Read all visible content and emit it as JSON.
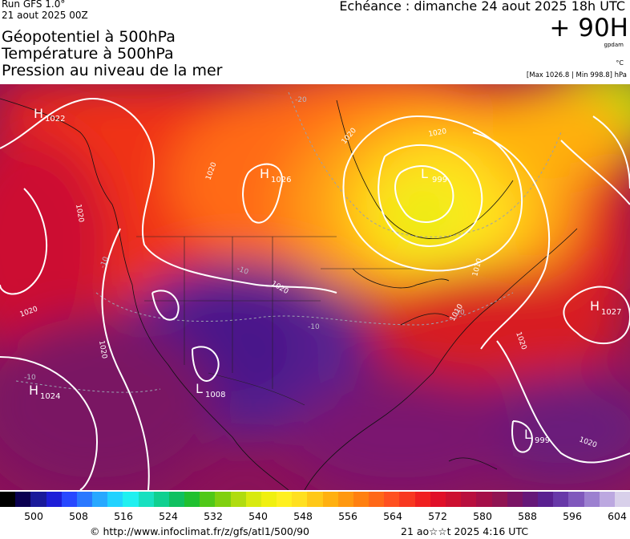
{
  "header": {
    "run": "Run GFS 1.0°",
    "run_date": "21 aout 2025 00Z",
    "titles": [
      "Géopotentiel à 500hPa",
      "Température à 500hPa",
      "Pression au niveau de la mer"
    ],
    "echeance": "Echéance : dimanche 24 aout 2025 18h UTC",
    "hour": "+ 90H",
    "unit_geo": "gpdam",
    "unit_temp": "°C",
    "maxmin": "[Max 1026.8 | Min 998.8] hPa"
  },
  "pressure_centers": [
    {
      "type": "H",
      "value": "1022"
    },
    {
      "type": "H",
      "value": "1026"
    },
    {
      "type": "L",
      "value": "999"
    },
    {
      "type": "H",
      "value": "1027"
    },
    {
      "type": "H",
      "value": "1024"
    },
    {
      "type": "L",
      "value": "1008"
    },
    {
      "type": "L",
      "value": "999"
    }
  ],
  "isobar_labels": [
    "1020",
    "1020",
    "1020",
    "1020",
    "1020",
    "1020",
    "1020",
    "1020",
    "1010",
    "1010",
    "1020"
  ],
  "temp_labels": [
    "-20",
    "-10",
    "-10",
    "-10",
    "-10",
    "-10"
  ],
  "colorbar": {
    "colors": [
      "#000000",
      "#0a0050",
      "#1a1a9a",
      "#1e1ed8",
      "#2848ff",
      "#2a78ff",
      "#28a8ff",
      "#22d2ff",
      "#20f0f0",
      "#18e0c0",
      "#10d090",
      "#10c060",
      "#20c030",
      "#50c818",
      "#80d010",
      "#b0dc10",
      "#d8ea10",
      "#f0f010",
      "#fff020",
      "#ffe020",
      "#ffc818",
      "#ffb010",
      "#ff9810",
      "#ff8010",
      "#ff6818",
      "#ff5020",
      "#f83820",
      "#f02020",
      "#e01028",
      "#cc1030",
      "#b80f3e",
      "#a40f48",
      "#901452",
      "#7a1464",
      "#661878",
      "#5a2090",
      "#6838a8",
      "#8058bc",
      "#9c80d0",
      "#bca8e0",
      "#d8d0ea"
    ],
    "ticks": [
      "500",
      "508",
      "516",
      "524",
      "532",
      "540",
      "548",
      "556",
      "564",
      "572",
      "580",
      "588",
      "596",
      "604"
    ]
  },
  "footer": {
    "credit": "© http://www.infoclimat.fr/z/gfs/atl1/500/90",
    "generated": "21 ao☆☆t 2025  4:16 UTC"
  }
}
